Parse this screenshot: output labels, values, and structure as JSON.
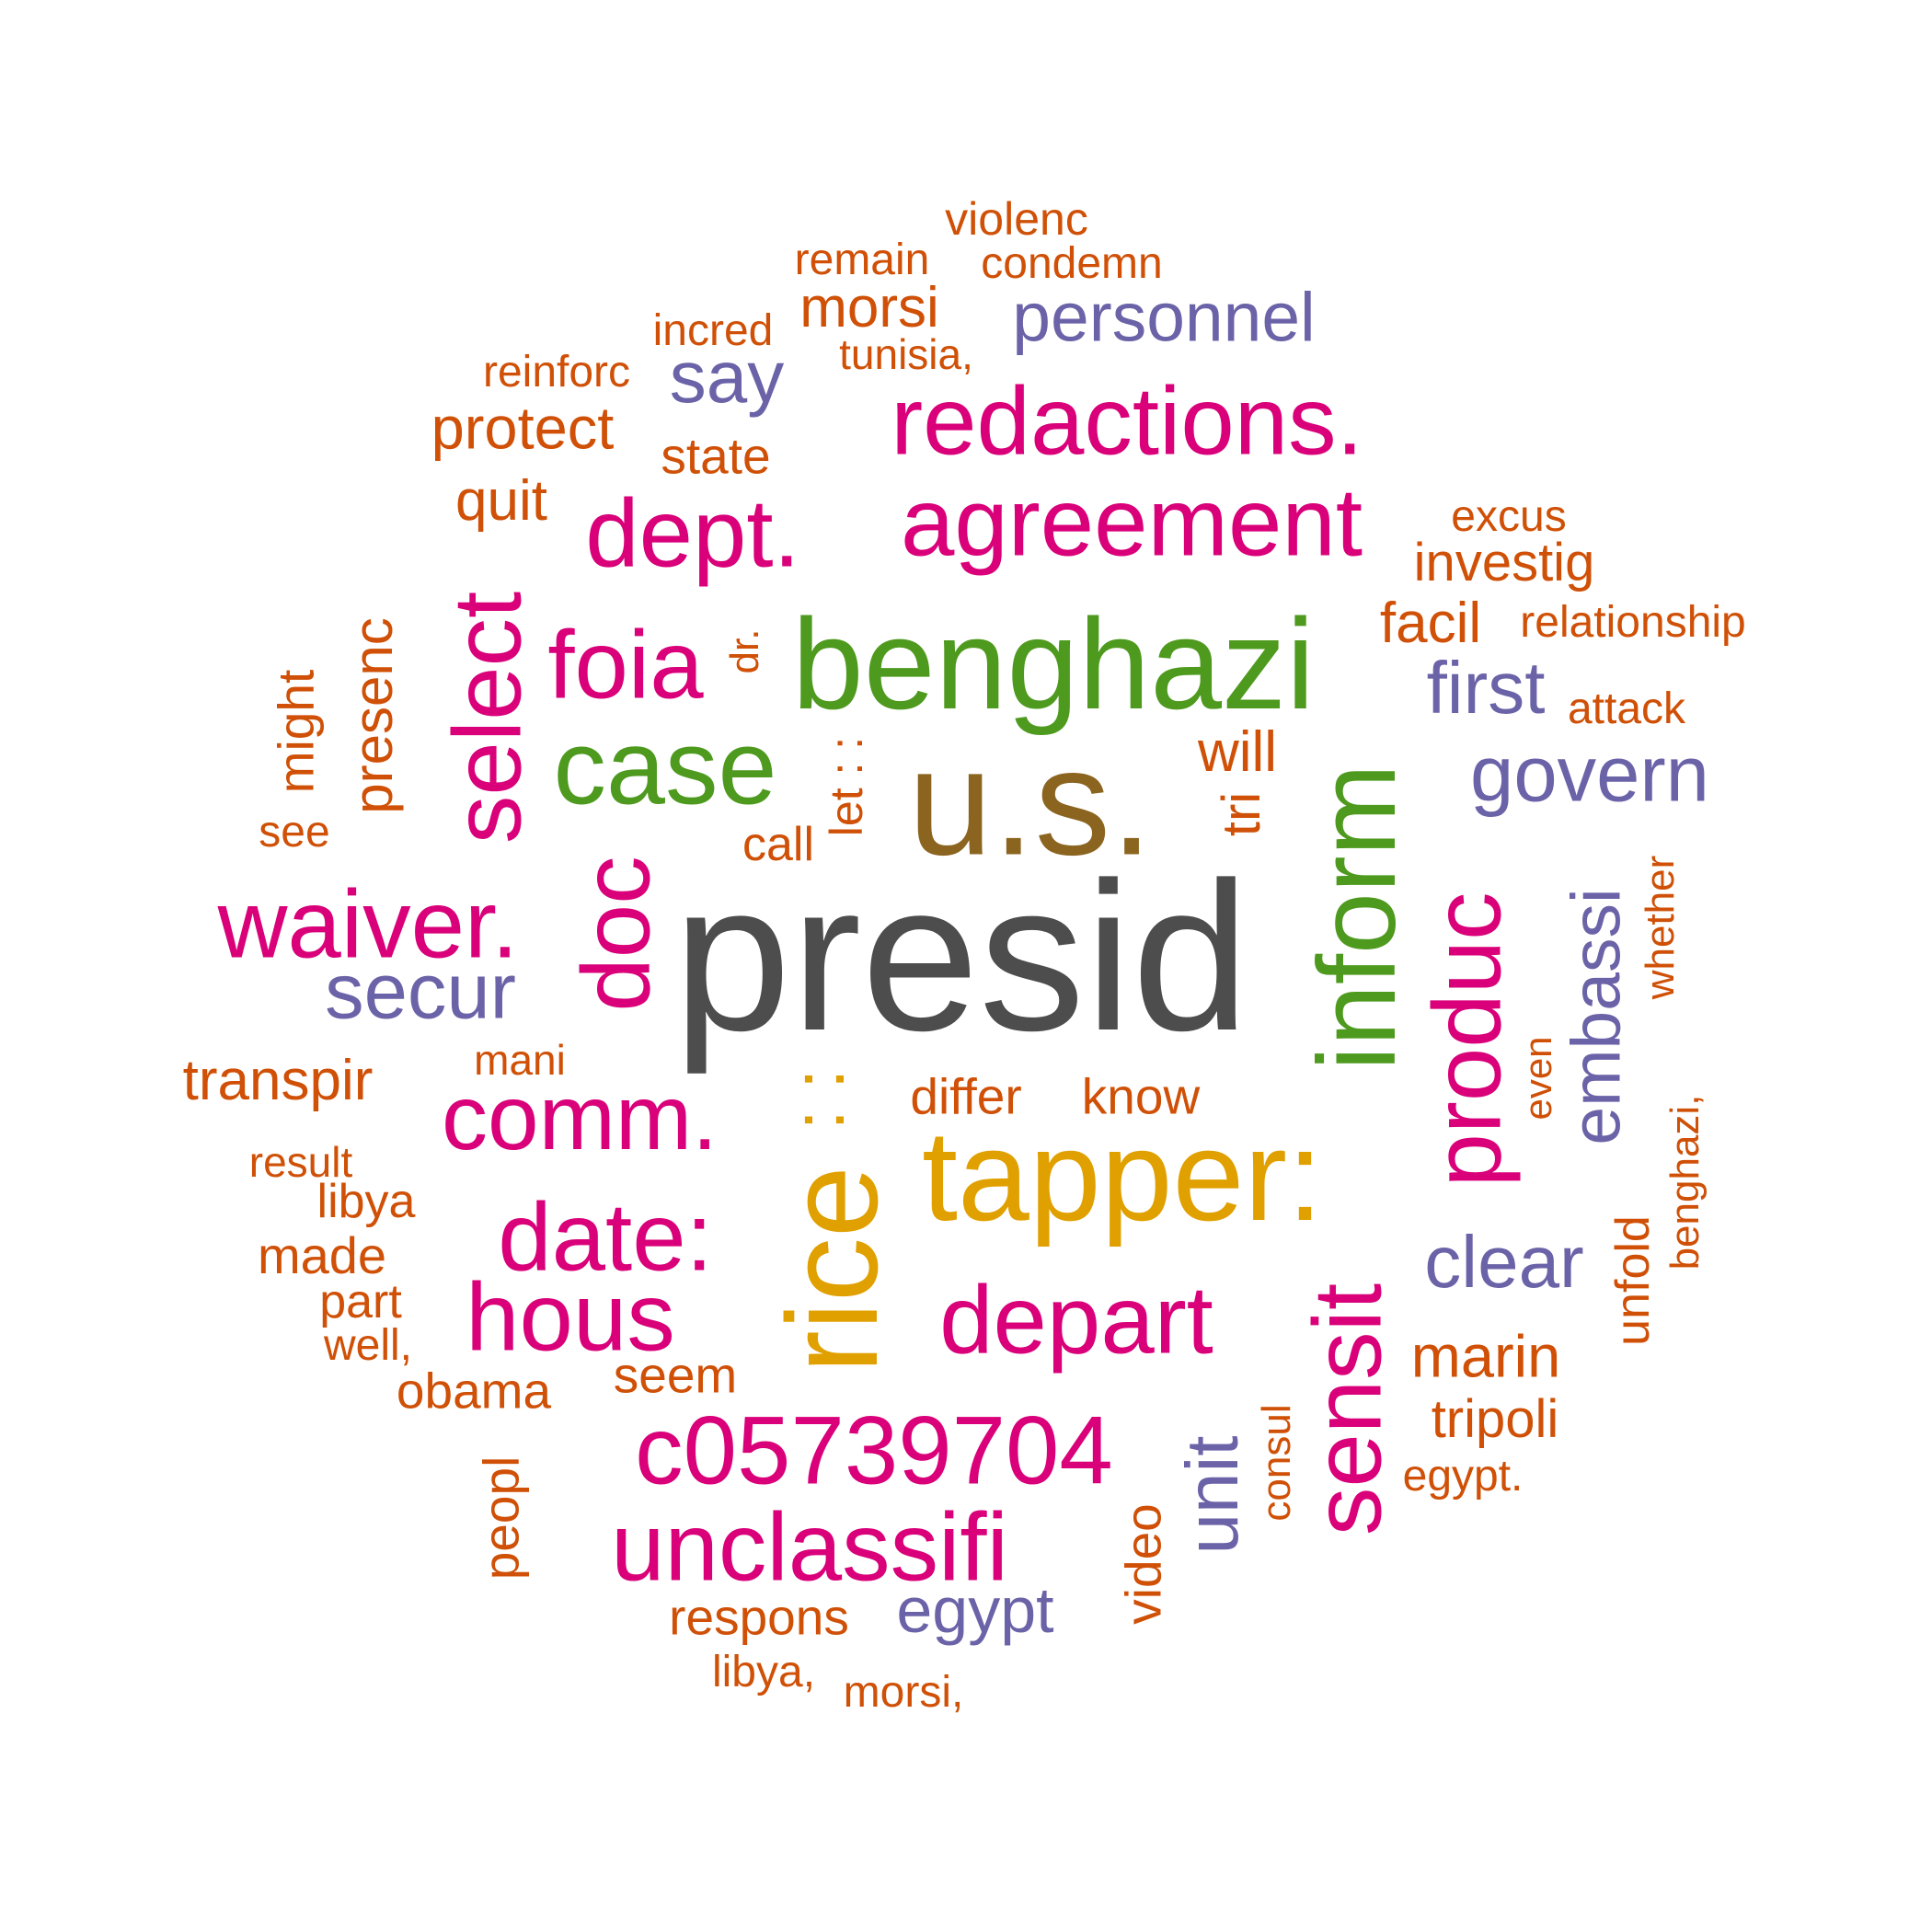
{
  "colors": {
    "gray": "#4d4d4d",
    "brown": "#8b6420",
    "gold": "#e0a000",
    "green": "#4e9a1e",
    "magenta": "#d9007a",
    "purple": "#6b63a8",
    "orange": "#cf5006"
  },
  "words": {
    "presid": "presid",
    "us": "u.s.",
    "tapper": "tapper:",
    "rice": "rice",
    "dotsv": ": :",
    "benghazi": "benghazi",
    "case": "case",
    "inform": "inform",
    "redactions": "redactions.",
    "agreement": "agreement",
    "dept": "dept.",
    "foia": "foia",
    "select": "select",
    "waiver": "waiver.",
    "doc": "doc",
    "comm": "comm.",
    "date": "date:",
    "hous": "hous",
    "depart": "depart",
    "c05739704": "c05739704",
    "unclassifi": "unclassifi",
    "sensit": "sensit",
    "produc": "produc",
    "personnel": "personnel",
    "say": "say",
    "first": "first",
    "govern": "govern",
    "secur": "secur",
    "embassi": "embassi",
    "clear": "clear",
    "unit": "unit",
    "egypt": "egypt",
    "violenc": "violenc",
    "remain": "remain",
    "condemn": "condemn",
    "morsi": "morsi",
    "incred": "incred",
    "tunisia": "tunisia,",
    "reinforc": "reinforc",
    "protect": "protect",
    "state": "state",
    "quit": "quit",
    "excus": "excus",
    "investig": "investig",
    "facil": "facil",
    "relationship": "relationship",
    "attack": "attack",
    "presenc": "presenc",
    "might": "might",
    "see": "see",
    "dr": "dr.",
    "letdots": "let : :",
    "will": "will",
    "tri": "tri",
    "call": "call",
    "whether": "whether",
    "mani": "mani",
    "transpir": "transpir",
    "differ": "differ",
    "know": "know",
    "even": "even",
    "benghazi2": "benghazi,",
    "result": "result",
    "libya": "libya",
    "made": "made",
    "part": "part",
    "well": "well,",
    "obama": "obama",
    "seem": "seem",
    "unfold": "unfold",
    "marin": "marin",
    "tripoli": "tripoli",
    "egypt2": "egypt.",
    "consul": "consul",
    "peopl": "peopl",
    "video": "video",
    "respons": "respons",
    "libya2": "libya,",
    "morsi2": "morsi,"
  }
}
